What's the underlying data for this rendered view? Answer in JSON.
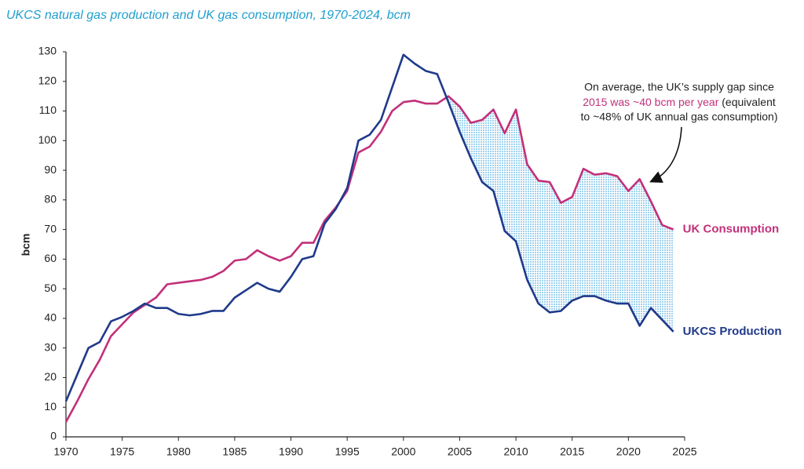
{
  "chart_data": {
    "type": "line",
    "title": "UKCS natural gas production and UK gas consumption, 1970-2024, bcm",
    "y_label": "bcm",
    "x": [
      1970,
      1971,
      1972,
      1973,
      1974,
      1975,
      1976,
      1977,
      1978,
      1979,
      1980,
      1981,
      1982,
      1983,
      1984,
      1985,
      1986,
      1987,
      1988,
      1989,
      1990,
      1991,
      1992,
      1993,
      1994,
      1995,
      1996,
      1997,
      1998,
      1999,
      2000,
      2001,
      2002,
      2003,
      2004,
      2005,
      2006,
      2007,
      2008,
      2009,
      2010,
      2011,
      2012,
      2013,
      2014,
      2015,
      2016,
      2017,
      2018,
      2019,
      2020,
      2021,
      2022,
      2023,
      2024
    ],
    "series": [
      {
        "name": "UK Consumption",
        "color": "#c2307a",
        "values": [
          5,
          12,
          19.5,
          26,
          34,
          38,
          42,
          44.5,
          47,
          51.5,
          52,
          52.5,
          53,
          54,
          56,
          59.5,
          60,
          63,
          61,
          59.5,
          61,
          65.5,
          65.5,
          73,
          77.5,
          83,
          96,
          98,
          103,
          110,
          113,
          113.5,
          112.5,
          112.5,
          115,
          111.5,
          106,
          107,
          110.5,
          102.5,
          110.5,
          92,
          86.5,
          86,
          79,
          81,
          90.5,
          88.5,
          89,
          88,
          83,
          87,
          79.5,
          71.5,
          70
        ]
      },
      {
        "name": "UKCS Production",
        "color": "#1f3a8a",
        "values": [
          12,
          21,
          30,
          32,
          39,
          40.5,
          42.5,
          45,
          43.5,
          43.5,
          41.5,
          41,
          41.5,
          42.5,
          42.5,
          47,
          49.5,
          52,
          50,
          49,
          54,
          60,
          61,
          72,
          77,
          84,
          100,
          102,
          107,
          118,
          129,
          126,
          123.5,
          122.5,
          113,
          103,
          94,
          86,
          83,
          69.5,
          66,
          53,
          45,
          42,
          42.5,
          46,
          47.5,
          47.5,
          46,
          45,
          45,
          37.5,
          43.5,
          39.5,
          35.5
        ]
      }
    ],
    "gap_color": "#9fd2ee",
    "annotation": {
      "line1": "On average, the UK’s supply gap since",
      "highlight": "2015 was ~40 bcm per year",
      "rest": " (equivalent",
      "line3": "to ~48% of UK annual gas consumption)"
    },
    "xlim": [
      1970,
      2025
    ],
    "xticks": [
      1970,
      1975,
      1980,
      1985,
      1990,
      1995,
      2000,
      2005,
      2010,
      2015,
      2020,
      2025
    ],
    "ylim": [
      0,
      130
    ],
    "yticks": [
      0,
      10,
      20,
      30,
      40,
      50,
      60,
      70,
      80,
      90,
      100,
      110,
      120,
      130
    ],
    "grid": false
  }
}
